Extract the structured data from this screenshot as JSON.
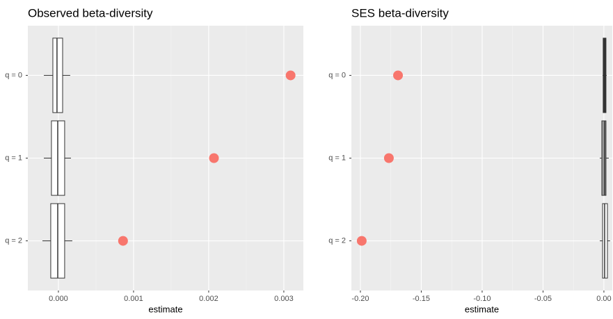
{
  "chart_data": [
    {
      "type": "boxplot",
      "title": "Observed beta-diversity",
      "x_label": "estimate",
      "categories": [
        "q = 0",
        "q = 1",
        "q = 2"
      ],
      "boxes": [
        {
          "low": -0.000194,
          "q1": -7.4e-05,
          "median": -1.9e-05,
          "q3": 5.6e-05,
          "high": 0.000157
        },
        {
          "low": -0.000194,
          "q1": -9.3e-05,
          "median": -9e-06,
          "q3": 8.3e-05,
          "high": 0.000167
        },
        {
          "low": -0.000213,
          "q1": -0.000102,
          "median": -9e-06,
          "q3": 8.3e-05,
          "high": 0.000185
        }
      ],
      "box_fills": [
        "#ffffff",
        "#ffffff",
        "#ffffff"
      ],
      "points": {
        "values": [
          0.00309,
          0.00207,
          0.00086
        ],
        "color": "#f8766d"
      },
      "xlim": [
        -0.000407,
        0.00326
      ],
      "xticks": [
        {
          "value": 0,
          "label": "0.000"
        },
        0.001,
        0.002,
        0.003
      ],
      "grid": true
    },
    {
      "type": "boxplot",
      "title": "SES beta-diversity",
      "x_label": "estimate",
      "categories": [
        "q = 0",
        "q = 1",
        "q = 2"
      ],
      "boxes": [
        {
          "low": -0.0011,
          "q1": -0.0006,
          "median": 0.0006,
          "q3": 0.0017,
          "high": 0.0023
        },
        {
          "low": -0.0034,
          "q1": -0.0017,
          "median": 0.0006,
          "q3": 0.0017,
          "high": 0.004
        },
        {
          "low": -0.0034,
          "q1": -0.0011,
          "median": 0.0006,
          "q3": 0.0029,
          "high": 0.0051
        }
      ],
      "box_fills": [
        "#333333",
        "#999999",
        "#ffffff"
      ],
      "points": {
        "values": [
          -0.1691,
          -0.1766,
          -0.1989
        ],
        "color": "#f8766d"
      },
      "xlim": [
        -0.2074,
        0.0069
      ],
      "xticks": [
        {
          "value": -0.2,
          "label": "-0.20"
        },
        -0.15,
        {
          "value": -0.1,
          "label": "-0.10"
        },
        -0.05,
        {
          "value": 0,
          "label": "0.00"
        }
      ],
      "grid": true
    }
  ]
}
